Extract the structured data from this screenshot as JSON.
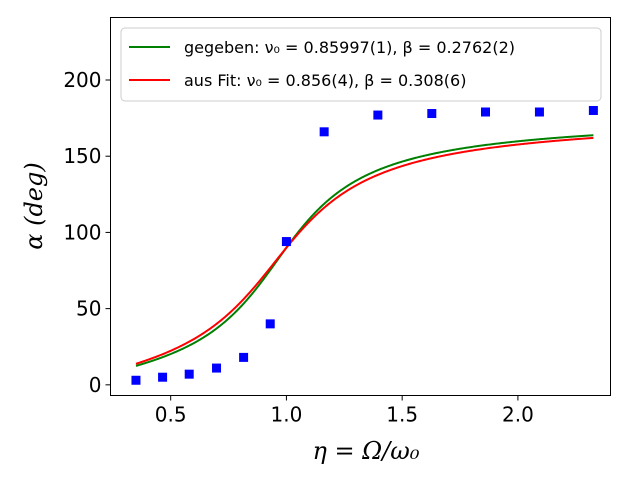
{
  "chart_data": {
    "type": "line",
    "xlabel": "η = Ω/ω₀",
    "ylabel": "α (deg)",
    "xlim": [
      0.24,
      2.4
    ],
    "ylim": [
      -7,
      241
    ],
    "xticks": [
      0.5,
      1.0,
      1.5,
      2.0
    ],
    "xtick_labels": [
      "0.5",
      "1.0",
      "1.5",
      "2.0"
    ],
    "yticks": [
      0,
      50,
      100,
      150,
      200
    ],
    "ytick_labels": [
      "0",
      "50",
      "100",
      "150",
      "200"
    ],
    "grid": false,
    "legend_position": "top-left",
    "measured_points": {
      "marker": "square",
      "color": "#0000ff",
      "x": [
        0.35,
        0.465,
        0.58,
        0.698,
        0.815,
        0.93,
        1.0,
        1.163,
        1.395,
        1.628,
        1.86,
        2.093,
        2.326
      ],
      "y": [
        3,
        5,
        7,
        11,
        18,
        40,
        94,
        166,
        177,
        178,
        179,
        179,
        180
      ]
    },
    "series": [
      {
        "name": "gegeben: ν₀ = 0.85997(1),  β = 0.2762(2)",
        "color": "#008000",
        "nu0": 0.85997,
        "beta": 0.2762,
        "x_range": [
          0.35,
          2.326
        ]
      },
      {
        "name": "aus Fit: ν₀ = 0.856(4),  β = 0.308(6)",
        "color": "#ff0000",
        "nu0": 0.856,
        "beta": 0.308,
        "x_range": [
          0.35,
          2.326
        ]
      }
    ]
  }
}
